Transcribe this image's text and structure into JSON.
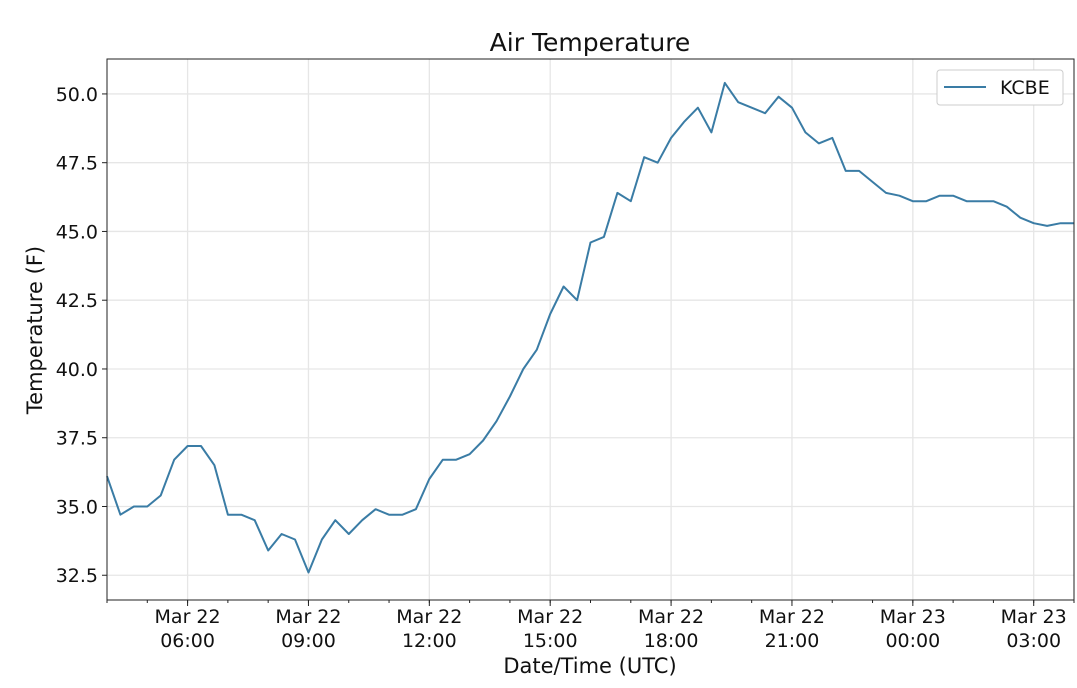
{
  "chart_data": {
    "type": "line",
    "title": "Air Temperature",
    "xlabel": "Date/Time (UTC)",
    "ylabel": "Temperature (F)",
    "x_units": "hours since Mar 22 04:00 UTC",
    "xlim": [
      0,
      24
    ],
    "ylim": [
      31.6,
      51.27
    ],
    "grid": true,
    "legend_placement": "top-right",
    "yticks": [
      32.5,
      35.0,
      37.5,
      40.0,
      42.5,
      45.0,
      47.5,
      50.0
    ],
    "ytick_labels": [
      "32.5",
      "35.0",
      "37.5",
      "40.0",
      "42.5",
      "45.0",
      "47.5",
      "50.0"
    ],
    "xticks": [
      2,
      5,
      8,
      11,
      14,
      17,
      20,
      23
    ],
    "xtick_labels": [
      [
        "Mar 22",
        "06:00"
      ],
      [
        "Mar 22",
        "09:00"
      ],
      [
        "Mar 22",
        "12:00"
      ],
      [
        "Mar 22",
        "15:00"
      ],
      [
        "Mar 22",
        "18:00"
      ],
      [
        "Mar 22",
        "21:00"
      ],
      [
        "Mar 23",
        "00:00"
      ],
      [
        "Mar 23",
        "03:00"
      ]
    ],
    "series": [
      {
        "name": "KCBE",
        "color": "#3a7ca5",
        "x_step_hours": 0.3333,
        "values": [
          36.1,
          34.7,
          35.0,
          35.0,
          35.4,
          36.7,
          37.2,
          37.2,
          36.5,
          34.7,
          34.7,
          34.5,
          33.4,
          34.0,
          33.8,
          32.6,
          33.8,
          34.5,
          34.0,
          34.5,
          34.9,
          34.7,
          34.7,
          34.9,
          36.0,
          36.7,
          36.7,
          36.9,
          37.4,
          38.1,
          39.0,
          40.0,
          40.7,
          42.0,
          43.0,
          42.5,
          44.6,
          44.8,
          46.4,
          46.1,
          47.7,
          47.5,
          48.4,
          49.0,
          49.5,
          48.6,
          50.4,
          49.7,
          49.5,
          49.3,
          49.9,
          49.5,
          48.6,
          48.2,
          48.4,
          47.2,
          47.2,
          46.8,
          46.4,
          46.3,
          46.1,
          46.1,
          46.3,
          46.3,
          46.1,
          46.1,
          46.1,
          45.9,
          45.5,
          45.3,
          45.2,
          45.3,
          45.3
        ]
      }
    ]
  }
}
